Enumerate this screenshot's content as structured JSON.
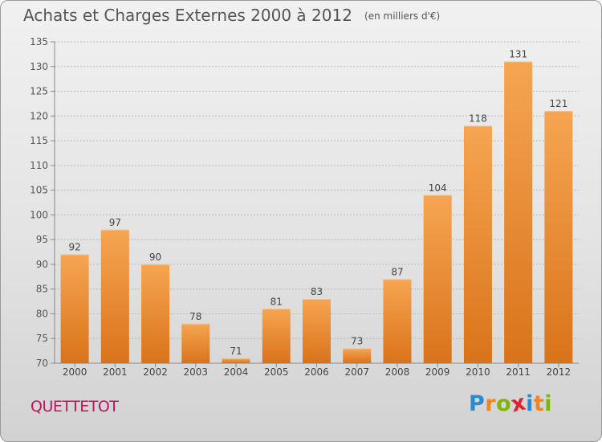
{
  "title": "Achats et Charges Externes 2000 à 2012",
  "subtitle": "(en milliers d'€)",
  "commune": "QUETTETOT",
  "logo": {
    "letters": [
      "P",
      "r",
      "o",
      "x",
      "i",
      "t",
      "i"
    ],
    "colors": [
      "#2a8bd0",
      "#f0861d",
      "#7cb800",
      "#e21f2a",
      "#2a8bd0",
      "#f0861d",
      "#7cb800"
    ]
  },
  "colors": {
    "bar": "#f08a24",
    "text": "#555555",
    "accent": "#c0135c"
  },
  "chart_data": {
    "type": "bar",
    "categories": [
      "2000",
      "2001",
      "2002",
      "2003",
      "2004",
      "2005",
      "2006",
      "2007",
      "2008",
      "2009",
      "2010",
      "2011",
      "2012"
    ],
    "values": [
      92,
      97,
      90,
      78,
      71,
      81,
      83,
      73,
      87,
      104,
      118,
      131,
      121
    ],
    "ylim": [
      70,
      135
    ],
    "yticks": [
      70,
      75,
      80,
      85,
      90,
      95,
      100,
      105,
      110,
      115,
      120,
      125,
      130,
      135
    ],
    "grid": true
  }
}
